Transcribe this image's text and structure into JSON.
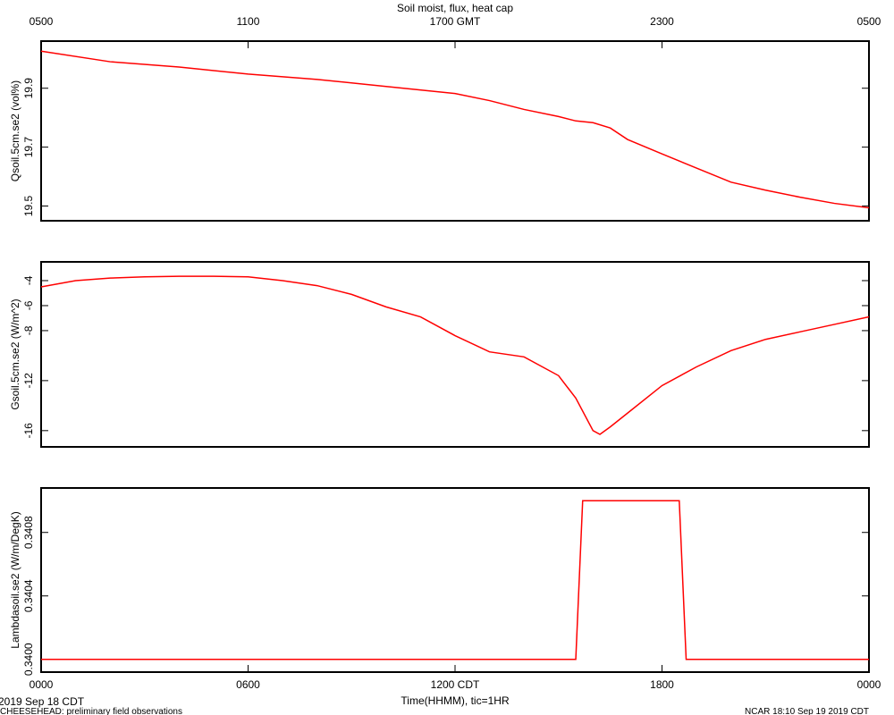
{
  "title": "Soil moist, flux, heat cap",
  "x_label": "Time(HHMM), tic=1HR",
  "date_label": "2019 Sep 18 CDT",
  "footer_left": "CHEESEHEAD: preliminary field observations",
  "footer_right": "NCAR 18:10 Sep 19 2019 CDT",
  "chart_data": [
    {
      "type": "line",
      "ylabel": "Qsoil.5cm.se2 (vol%)",
      "color": "#ff0000",
      "x": [
        0,
        2,
        4,
        6,
        8,
        10,
        12,
        13,
        14,
        15,
        15.5,
        16,
        16.5,
        17,
        18,
        19,
        20,
        21,
        22,
        23,
        24
      ],
      "values": [
        20.026,
        19.99,
        19.972,
        19.948,
        19.93,
        19.906,
        19.882,
        19.858,
        19.828,
        19.804,
        19.789,
        19.783,
        19.765,
        19.726,
        19.677,
        19.629,
        19.581,
        19.554,
        19.53,
        19.509,
        19.494
      ],
      "xlim": [
        0,
        24
      ],
      "ylim": [
        19.45,
        20.06
      ],
      "yticks": [
        19.5,
        19.7,
        19.9
      ],
      "x2ticks": [
        {
          "value": 0,
          "label": "0500"
        },
        {
          "value": 6,
          "label": "1100"
        },
        {
          "value": 12,
          "label": "1700 GMT"
        },
        {
          "value": 18,
          "label": "2300"
        },
        {
          "value": 24,
          "label": "0500"
        }
      ]
    },
    {
      "type": "line",
      "ylabel": "Gsoil.5cm.se2 (W/m^2)",
      "color": "#ff0000",
      "x": [
        0,
        1,
        2,
        3,
        4,
        5,
        6,
        7,
        8,
        9,
        10,
        11,
        12,
        13,
        14,
        15,
        15.5,
        16,
        16.2,
        16.5,
        17,
        18,
        19,
        20,
        21,
        22,
        23,
        24
      ],
      "values": [
        -4.5,
        -4.0,
        -3.8,
        -3.7,
        -3.65,
        -3.65,
        -3.7,
        -4.0,
        -4.4,
        -5.1,
        -6.1,
        -6.9,
        -8.4,
        -9.7,
        -10.1,
        -11.6,
        -13.4,
        -16.0,
        -16.3,
        -15.7,
        -14.6,
        -12.4,
        -10.9,
        -9.6,
        -8.7,
        -8.1,
        -7.5,
        -6.9
      ],
      "xlim": [
        0,
        24
      ],
      "ylim": [
        -17.3,
        -2.5
      ],
      "yticks": [
        -16,
        -12,
        -8,
        -6,
        -4
      ]
    },
    {
      "type": "line",
      "ylabel": "Lambdasoil.se2 (W/m/DegK)",
      "color": "#ff0000",
      "x": [
        0,
        15.5,
        15.7,
        18.5,
        18.7,
        24
      ],
      "values": [
        0.34,
        0.34,
        0.341,
        0.341,
        0.34,
        0.34
      ],
      "xlim": [
        0,
        24
      ],
      "ylim": [
        0.33992,
        0.34108
      ],
      "yticks": [
        {
          "value": 0.34,
          "label": "0.3400"
        },
        0.3404,
        0.3408
      ],
      "xticks": [
        {
          "value": 0,
          "label": "0000"
        },
        {
          "value": 6,
          "label": "0600"
        },
        {
          "value": 12,
          "label": "1200 CDT"
        },
        {
          "value": 18,
          "label": "1800"
        },
        {
          "value": 24,
          "label": "0000"
        }
      ]
    }
  ]
}
